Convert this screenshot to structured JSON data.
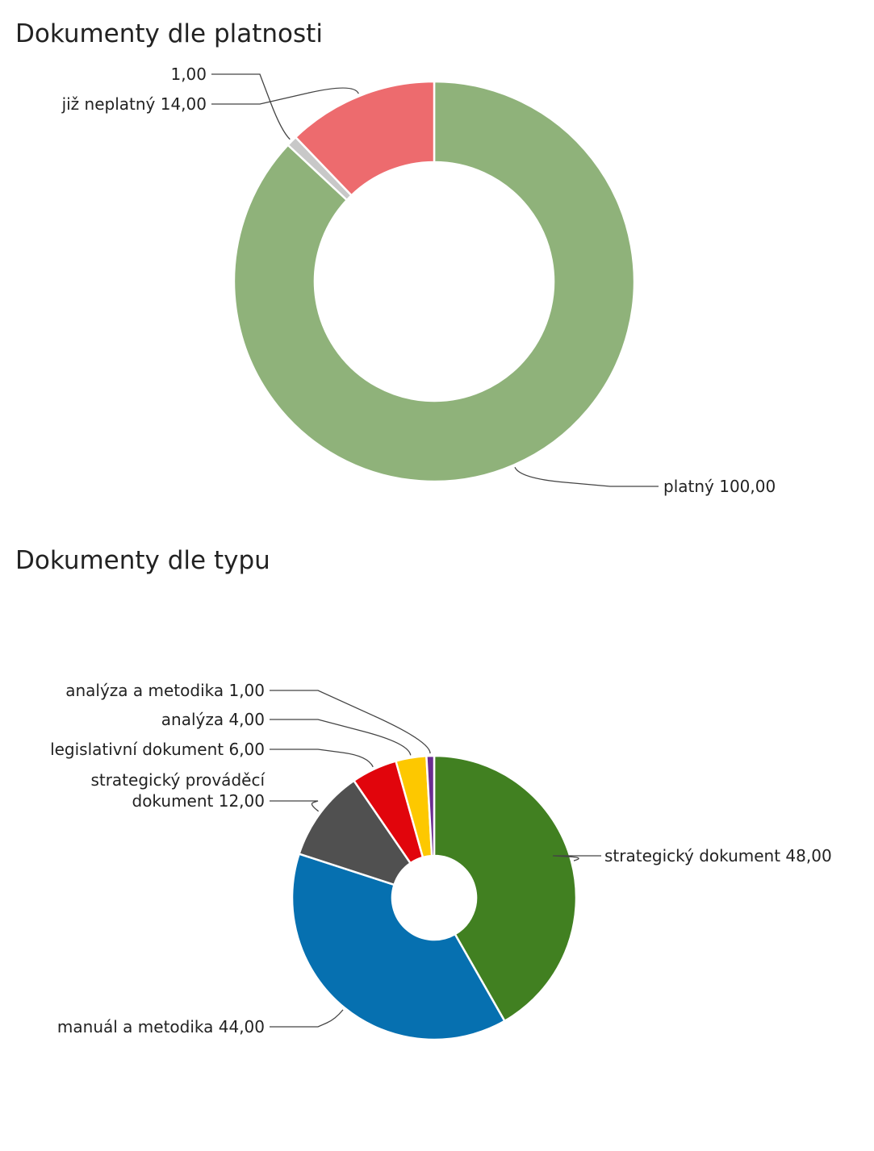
{
  "chart_data": [
    {
      "type": "pie",
      "title": "Dokumenty dle platnosti",
      "donut": true,
      "slices": [
        {
          "label": "platný",
          "value": 100,
          "value_text": "100,00",
          "color": "#8fb27a"
        },
        {
          "label": "",
          "value": 1,
          "value_text": "1,00",
          "color": "#c8c8c8"
        },
        {
          "label": "již neplatný",
          "value": 14,
          "value_text": "14,00",
          "color": "#ed6b6e"
        }
      ]
    },
    {
      "type": "pie",
      "title": "Dokumenty dle typu",
      "donut": true,
      "slices": [
        {
          "label": "strategický dokument",
          "value": 48,
          "value_text": "48,00",
          "color": "#418021"
        },
        {
          "label": "manuál a metodika",
          "value": 44,
          "value_text": "44,00",
          "color": "#0670b0"
        },
        {
          "label": "strategický prováděcí dokument",
          "label_lines": [
            "strategický prováděcí",
            "dokument 12,00"
          ],
          "value": 12,
          "value_text": "12,00",
          "color": "#505050"
        },
        {
          "label": "legislativní dokument",
          "value": 6,
          "value_text": "6,00",
          "color": "#e1050c"
        },
        {
          "label": "analýza",
          "value": 4,
          "value_text": "4,00",
          "color": "#fdc800"
        },
        {
          "label": "analýza a metodika",
          "value": 1,
          "value_text": "1,00",
          "color": "#6a2c91"
        }
      ]
    }
  ]
}
